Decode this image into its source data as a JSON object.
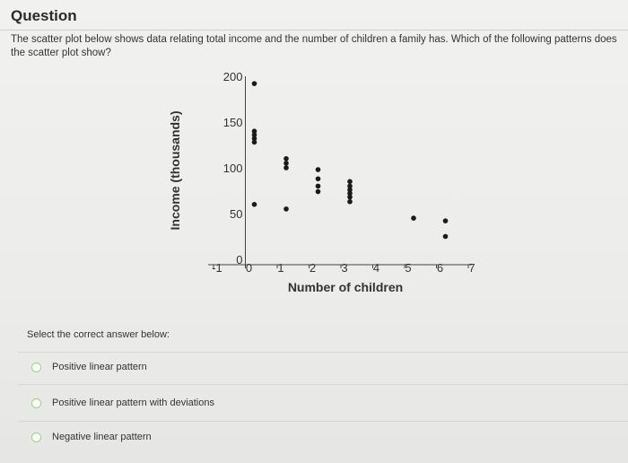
{
  "question": {
    "title": "Question",
    "text": "The scatter plot below shows data relating total income and the number of children a family has. Which of the following patterns does the scatter plot show?"
  },
  "chart_data": {
    "type": "scatter",
    "xlabel": "Number of children",
    "ylabel": "Income (thousands)",
    "x_ticks": [
      "-1",
      "0",
      "1",
      "2",
      "3",
      "4",
      "5",
      "6",
      "7"
    ],
    "y_ticks": [
      "0",
      "50",
      "100",
      "150",
      "200"
    ],
    "xlim": [
      -1,
      7
    ],
    "ylim": [
      0,
      200
    ],
    "points": [
      {
        "x": 0,
        "y": 192
      },
      {
        "x": 0,
        "y": 140
      },
      {
        "x": 0,
        "y": 136
      },
      {
        "x": 0,
        "y": 132
      },
      {
        "x": 0,
        "y": 128
      },
      {
        "x": 0,
        "y": 60
      },
      {
        "x": 1,
        "y": 110
      },
      {
        "x": 1,
        "y": 105
      },
      {
        "x": 1,
        "y": 100
      },
      {
        "x": 1,
        "y": 55
      },
      {
        "x": 2,
        "y": 98
      },
      {
        "x": 2,
        "y": 88
      },
      {
        "x": 2,
        "y": 80
      },
      {
        "x": 2,
        "y": 74
      },
      {
        "x": 3,
        "y": 85
      },
      {
        "x": 3,
        "y": 80
      },
      {
        "x": 3,
        "y": 76
      },
      {
        "x": 3,
        "y": 72
      },
      {
        "x": 3,
        "y": 68
      },
      {
        "x": 3,
        "y": 63
      },
      {
        "x": 5,
        "y": 45
      },
      {
        "x": 6,
        "y": 42
      },
      {
        "x": 6,
        "y": 25
      }
    ],
    "marker_color": "#1a1a1a"
  },
  "answers": {
    "prompt": "Select the correct answer below:",
    "options": [
      "Positive linear pattern",
      "Positive linear pattern with deviations",
      "Negative linear pattern"
    ]
  },
  "colors": {
    "radio_border": "#9bd37c"
  }
}
